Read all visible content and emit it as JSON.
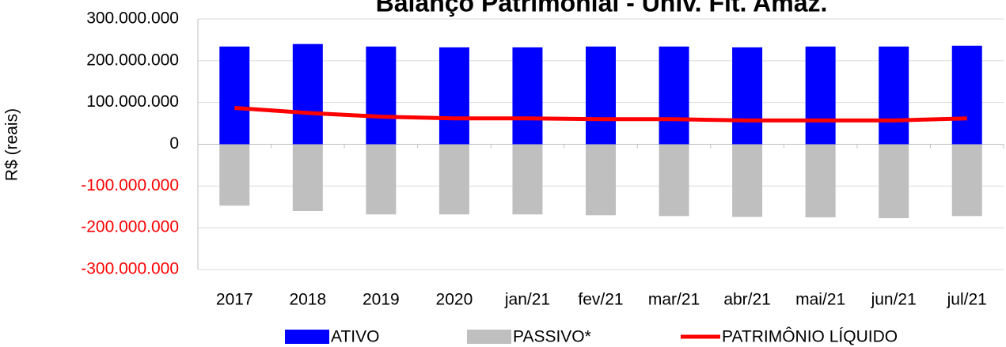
{
  "chart_data": {
    "type": "bar",
    "title": "Balanço Patrimonial - Univ. Fit. Amaz.",
    "y_label": "R$ (reais)",
    "categories": [
      "2017",
      "2018",
      "2019",
      "2020",
      "jan/21",
      "fev/21",
      "mar/21",
      "abr/21",
      "mai/21",
      "jun/21",
      "jul/21"
    ],
    "series": [
      {
        "name": "ATIVO",
        "type": "bar",
        "color": "#0000ff",
        "values": [
          234000000,
          240000000,
          234000000,
          232000000,
          232000000,
          234000000,
          234000000,
          232000000,
          234000000,
          234000000,
          236000000
        ]
      },
      {
        "name": "PASSIVO*",
        "type": "bar",
        "color": "#bfbfbf",
        "values": [
          -147000000,
          -160000000,
          -168000000,
          -168000000,
          -168000000,
          -170000000,
          -172000000,
          -174000000,
          -175000000,
          -177000000,
          -172000000
        ]
      },
      {
        "name": "PATRIMÔNIO LÍQUIDO",
        "type": "line",
        "color": "#ff0000",
        "values": [
          87000000,
          75000000,
          66000000,
          62000000,
          62000000,
          60000000,
          60000000,
          57000000,
          57000000,
          57000000,
          62000000
        ]
      }
    ],
    "ylim": [
      -300000000,
      300000000
    ],
    "yticks": [
      {
        "value": -300000000,
        "label": "-300.000.000"
      },
      {
        "value": -200000000,
        "label": "-200.000.000"
      },
      {
        "value": -100000000,
        "label": "-100.000.000"
      },
      0,
      {
        "value": 100000000,
        "label": "100.000.000"
      },
      {
        "value": 200000000,
        "label": "200.000.000"
      },
      {
        "value": 300000000,
        "label": "300.000.000"
      }
    ],
    "negative_tick_color": "#ff0000",
    "grid": true,
    "legend": "bottom"
  }
}
